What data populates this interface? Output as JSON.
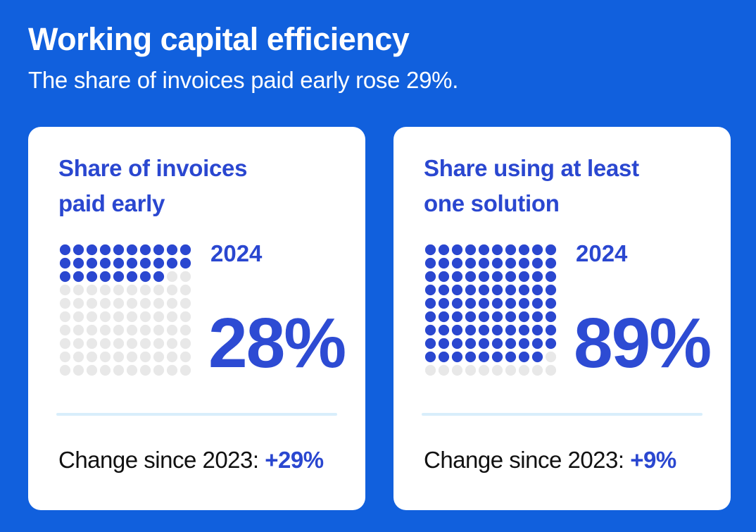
{
  "header": {
    "title": "Working capital efficiency",
    "subtitle": "The share of invoices paid early rose 29%."
  },
  "colors": {
    "background": "#1160DD",
    "accent": "#2A47D0",
    "filled_dot": "#2A47D0",
    "empty_dot": "#E8E8E8",
    "divider": "#D8EEFB"
  },
  "cards": [
    {
      "title_line1": "Share of invoices",
      "title_line2": "paid early",
      "year": "2024",
      "value_label": "28%",
      "change_label": "Change since 2023:",
      "change_value": "+29%"
    },
    {
      "title_line1": "Share using at least",
      "title_line2": "one solution",
      "year": "2024",
      "value_label": "89%",
      "change_label": "Change since 2023:",
      "change_value": "+9%"
    }
  ],
  "chart_data": [
    {
      "type": "waffle",
      "title": "Share of invoices paid early",
      "category": "2024",
      "value": 28,
      "unit": "%",
      "grid": [
        10,
        10
      ],
      "change_since_2023": "+29%"
    },
    {
      "type": "waffle",
      "title": "Share using at least one solution",
      "category": "2024",
      "value": 89,
      "unit": "%",
      "grid": [
        10,
        10
      ],
      "change_since_2023": "+9%"
    }
  ]
}
